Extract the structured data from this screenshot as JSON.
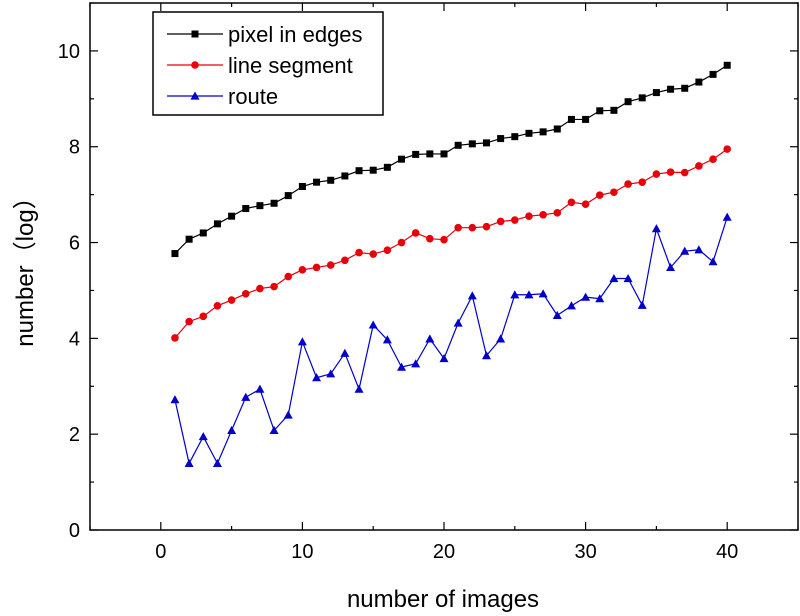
{
  "chart_data": {
    "type": "line",
    "xlabel": "number of images",
    "ylabel": "number（log）",
    "xlim": [
      -5,
      45
    ],
    "ylim": [
      0,
      11
    ],
    "x_ticks": [
      0,
      10,
      20,
      30,
      40
    ],
    "y_ticks": [
      0,
      2,
      4,
      6,
      8,
      10
    ],
    "x_tick_labels": [
      "0",
      "10",
      "20",
      "30",
      "40"
    ],
    "y_tick_labels": [
      "0",
      "2",
      "4",
      "6",
      "8",
      "10"
    ],
    "grid": false,
    "legend_position": "top-left",
    "x": [
      1,
      2,
      3,
      4,
      5,
      6,
      7,
      8,
      9,
      10,
      11,
      12,
      13,
      14,
      15,
      16,
      17,
      18,
      19,
      20,
      21,
      22,
      23,
      24,
      25,
      26,
      27,
      28,
      29,
      30,
      31,
      32,
      33,
      34,
      35,
      36,
      37,
      38,
      39,
      40
    ],
    "series": [
      {
        "name": "pixel in edges",
        "color": "#000000",
        "marker": "square",
        "values": [
          5.77,
          6.07,
          6.2,
          6.39,
          6.55,
          6.71,
          6.77,
          6.82,
          6.98,
          7.17,
          7.26,
          7.3,
          7.39,
          7.5,
          7.51,
          7.57,
          7.74,
          7.84,
          7.85,
          7.85,
          8.03,
          8.06,
          8.08,
          8.17,
          8.21,
          8.28,
          8.31,
          8.37,
          8.57,
          8.57,
          8.75,
          8.76,
          8.94,
          9.02,
          9.13,
          9.2,
          9.22,
          9.35,
          9.51,
          9.7
        ]
      },
      {
        "name": "line segment",
        "color": "#e8000b",
        "marker": "circle",
        "values": [
          4.01,
          4.35,
          4.46,
          4.68,
          4.8,
          4.93,
          5.04,
          5.08,
          5.29,
          5.43,
          5.48,
          5.53,
          5.63,
          5.79,
          5.76,
          5.84,
          6.0,
          6.2,
          6.08,
          6.06,
          6.31,
          6.31,
          6.33,
          6.44,
          6.47,
          6.55,
          6.58,
          6.62,
          6.84,
          6.8,
          6.99,
          7.05,
          7.22,
          7.26,
          7.43,
          7.47,
          7.46,
          7.6,
          7.74,
          7.95
        ]
      },
      {
        "name": "route",
        "color": "#0000c8",
        "marker": "triangle",
        "values": [
          2.72,
          1.39,
          1.95,
          1.39,
          2.08,
          2.77,
          2.94,
          2.08,
          2.4,
          3.93,
          3.18,
          3.26,
          3.69,
          2.94,
          4.28,
          3.97,
          3.4,
          3.47,
          3.99,
          3.58,
          4.32,
          4.89,
          3.64,
          3.99,
          4.91,
          4.91,
          4.93,
          4.48,
          4.68,
          4.86,
          4.83,
          5.25,
          5.25,
          4.69,
          6.29,
          5.48,
          5.82,
          5.85,
          5.6,
          6.53
        ]
      }
    ]
  }
}
